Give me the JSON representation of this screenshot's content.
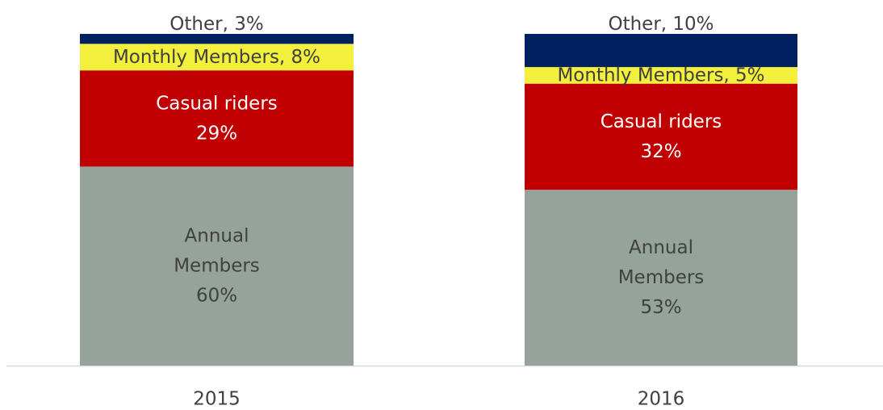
{
  "chart_data": {
    "type": "stacked_bar",
    "categories": [
      "2015",
      "2016"
    ],
    "ylim": [
      0,
      100
    ],
    "series": [
      {
        "color": "#95a39a",
        "values": [
          60,
          53
        ],
        "value_labels": [
          "Annual\nMembers\n60%",
          "Annual\nMembers\n53%"
        ]
      },
      {
        "color": "#c00000",
        "values": [
          29,
          32
        ],
        "value_labels": [
          "Casual riders\n29%",
          "Casual riders\n32%"
        ]
      },
      {
        "color": "#f2f03c",
        "values": [
          8,
          5
        ],
        "value_labels": [
          "Monthly Members, 8%",
          "Monthly Members, 5%"
        ]
      },
      {
        "color": "#002060",
        "values": [
          3,
          10
        ],
        "value_labels": [
          "Other, 3%",
          "Other, 10%"
        ]
      }
    ]
  }
}
